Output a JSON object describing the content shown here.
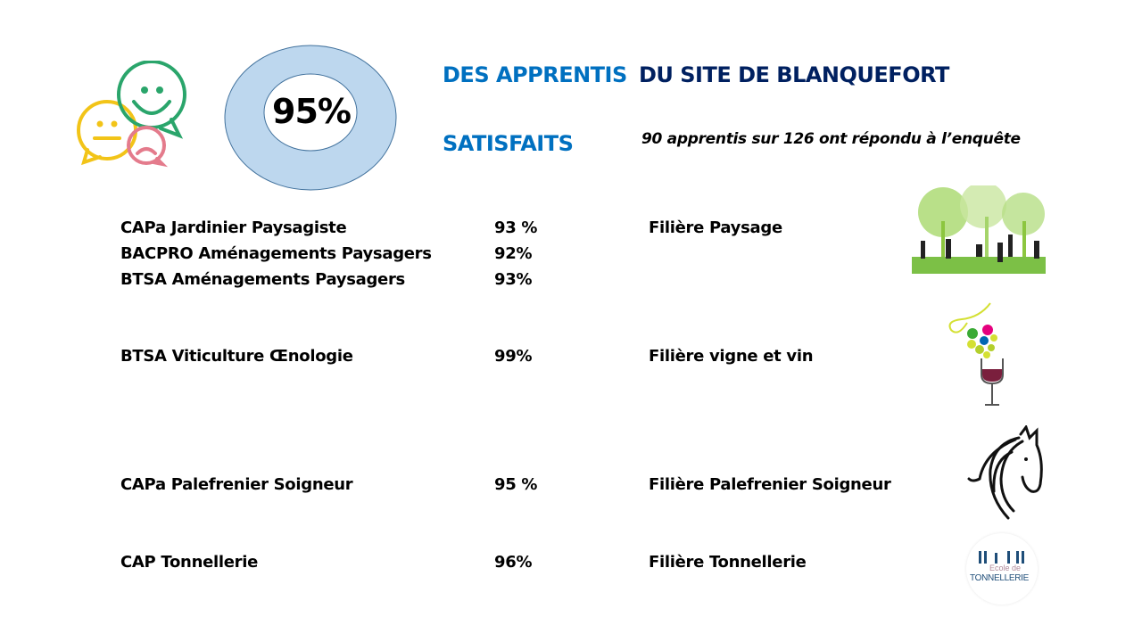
{
  "header": {
    "big_percent": "95%",
    "title_part1": "DES APPRENTIS",
    "title_part2": "DU SITE DE BLANQUEFORT",
    "subtitle": "SATISFAITS",
    "survey_note": "90 apprentis sur 126 ont répondu à l’enquête",
    "ring_fill": "#bdd7ee",
    "color_blue": "#0070c0",
    "color_navy": "#002060"
  },
  "rows": [
    {
      "formation": "CAPa Jardinier Paysagiste",
      "percent": "93 %"
    },
    {
      "formation": "BACPRO Aménagements Paysagers",
      "percent": "92%"
    },
    {
      "formation": "BTSA  Aménagements Paysagers",
      "percent": "93%"
    },
    {
      "formation": "BTSA  Viticulture Œnologie",
      "percent": "99%"
    },
    {
      "formation": "CAPa Palefrenier Soigneur",
      "percent": "95 %"
    },
    {
      "formation": "CAP Tonnellerie",
      "percent": "96%"
    }
  ],
  "filieres": [
    {
      "label": "Filière Paysage",
      "icon": "landscaping-icon"
    },
    {
      "label": "Filière vigne et vin",
      "icon": "wine-glass-icon"
    },
    {
      "label": "Filière Palefrenier Soigneur",
      "icon": "horse-head-icon"
    },
    {
      "label": "Filière Tonnellerie",
      "icon": "tonnellerie-logo"
    }
  ],
  "logo_text": {
    "line1": "Ecole de",
    "line2": "TONNELLERIE"
  }
}
